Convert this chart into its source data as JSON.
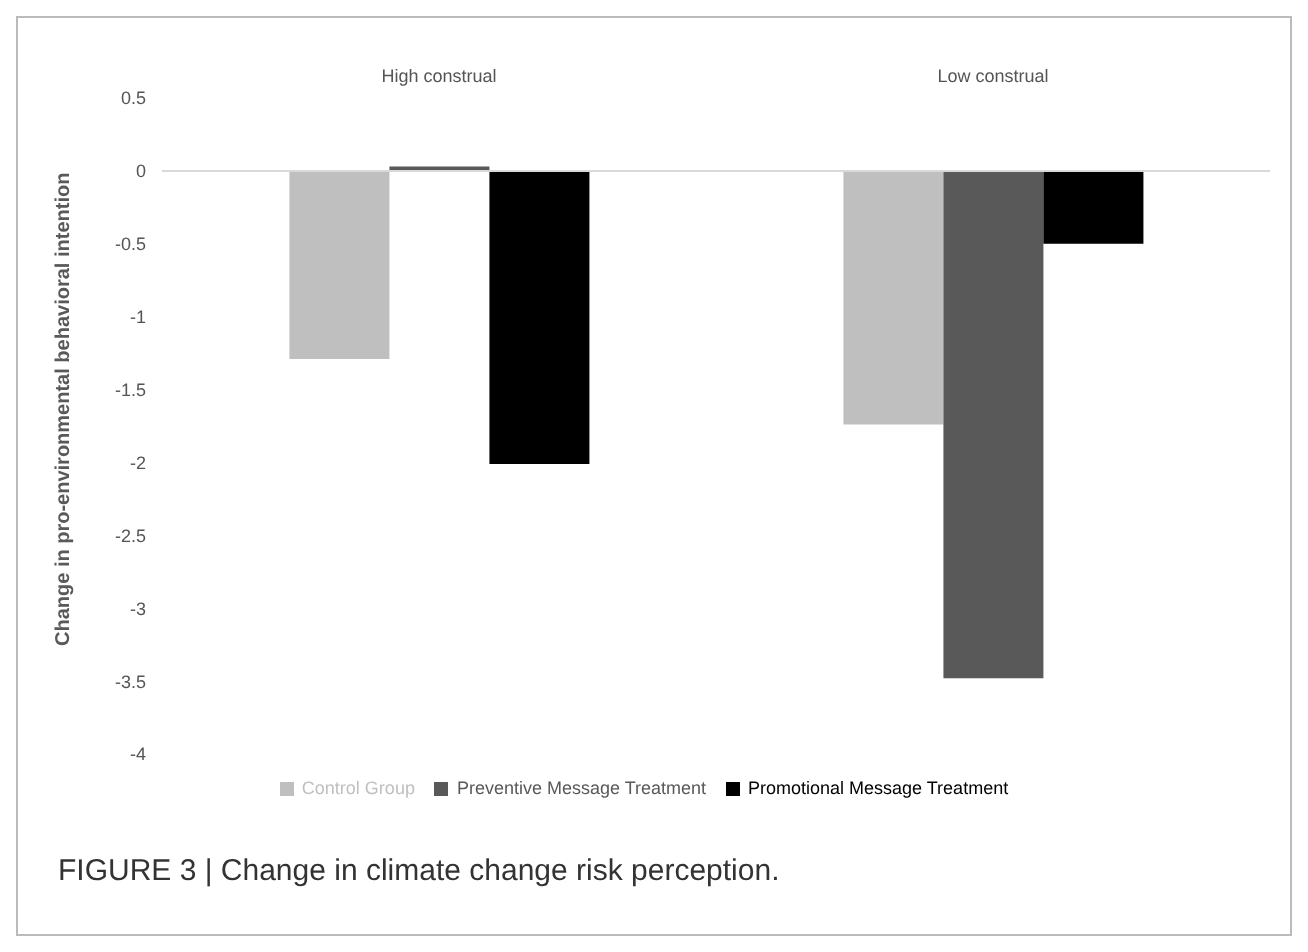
{
  "chart_data": {
    "type": "bar",
    "categories": [
      "High construal",
      "Low construal"
    ],
    "series": [
      {
        "name": "Control Group",
        "color": "#bfbfbf",
        "values": [
          -1.29,
          -1.74
        ]
      },
      {
        "name": "Preventive Message Treatment",
        "color": "#595959",
        "values": [
          0.03,
          -3.48
        ]
      },
      {
        "name": "Promotional Message Treatment",
        "color": "#000000",
        "values": [
          -2.01,
          -0.5
        ]
      }
    ],
    "ylabel": "Change in pro-environmental behavioral intention",
    "ylim": [
      -4,
      0.5
    ],
    "yticks": [
      0.5,
      0,
      -0.5,
      -1,
      -1.5,
      -2,
      -2.5,
      -3,
      -3.5,
      -4
    ],
    "ref_lines": [
      {
        "axis": "y",
        "value": 0,
        "color": "#d9d9d9"
      }
    ],
    "grid": false,
    "legend": "bottom",
    "annotations": [
      "FIGURE 3 | Change in climate change risk perception."
    ]
  }
}
